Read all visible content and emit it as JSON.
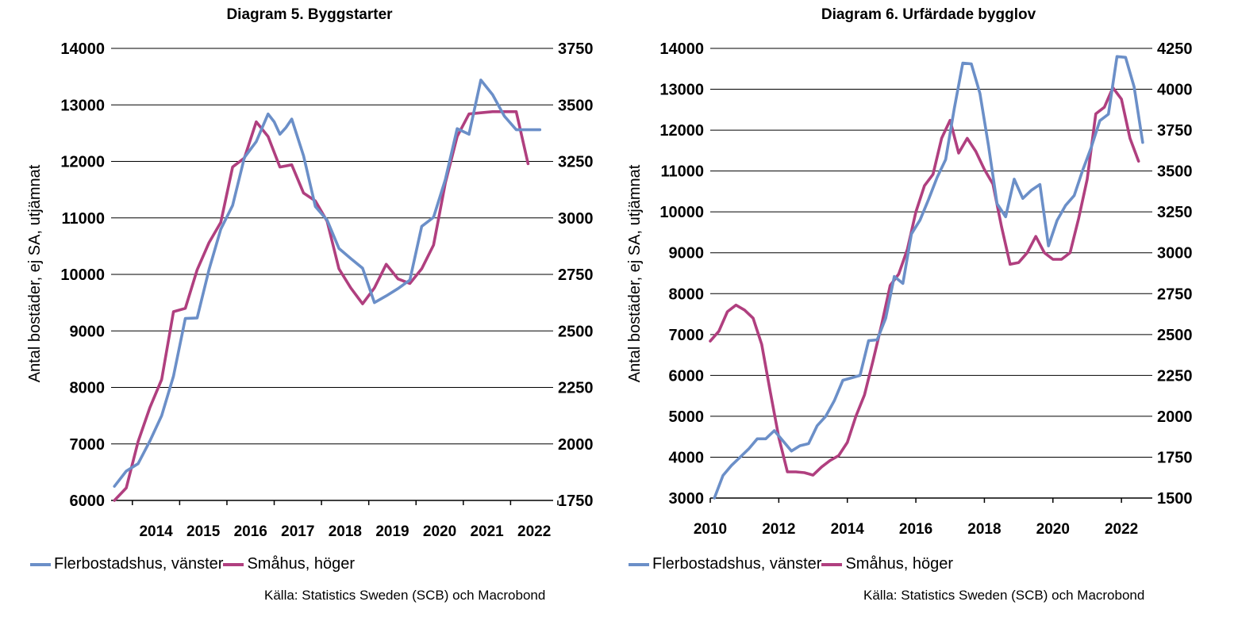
{
  "colors": {
    "flerbostadshus": "#6b8fc8",
    "smahus": "#b03f7f",
    "grid": "#000000"
  },
  "chart_data": [
    {
      "type": "line",
      "title": "Diagram 5. Byggstarter",
      "ylabel": "Antal bostäder, ej SA, utjämnat",
      "x_axis": {
        "min": 2013.55,
        "max": 2022.9,
        "ticks": [
          2014,
          2015,
          2016,
          2017,
          2018,
          2019,
          2020,
          2021,
          2022
        ],
        "labels_between_ticks": true
      },
      "y_left": {
        "min": 6000,
        "max": 14000,
        "ticks": [
          6000,
          7000,
          8000,
          9000,
          10000,
          11000,
          12000,
          13000,
          14000
        ]
      },
      "y_right": {
        "min": 1750,
        "max": 3750,
        "ticks": [
          1750,
          2000,
          2250,
          2500,
          2750,
          3000,
          3250,
          3500,
          3750
        ]
      },
      "grid": "horizontal",
      "series": [
        {
          "name": "Flerbostadshus, vänster",
          "axis": "left",
          "color_key": "flerbostadshus",
          "x": [
            2013.62,
            2013.87,
            2014.12,
            2014.37,
            2014.62,
            2014.87,
            2015.12,
            2015.37,
            2015.62,
            2015.87,
            2016.12,
            2016.37,
            2016.62,
            2016.87,
            2017.0,
            2017.12,
            2017.25,
            2017.37,
            2017.62,
            2017.87,
            2018.12,
            2018.37,
            2018.62,
            2018.87,
            2019.12,
            2019.37,
            2019.62,
            2019.87,
            2020.12,
            2020.37,
            2020.62,
            2020.87,
            2021.12,
            2021.37,
            2021.62,
            2021.87,
            2022.12,
            2022.37,
            2022.62
          ],
          "values": [
            6250,
            6520,
            6650,
            7050,
            7500,
            8200,
            9220,
            9230,
            10080,
            10800,
            11220,
            12070,
            12350,
            12840,
            12700,
            12480,
            12600,
            12750,
            12100,
            11200,
            10960,
            10460,
            10280,
            10110,
            9500,
            9620,
            9750,
            9900,
            10850,
            11010,
            11680,
            12580,
            12480,
            13440,
            13180,
            12800,
            12560,
            12560,
            12560
          ]
        },
        {
          "name": "Småhus, höger",
          "axis": "right",
          "color_key": "smahus",
          "x": [
            2013.62,
            2013.87,
            2014.12,
            2014.37,
            2014.62,
            2014.87,
            2015.12,
            2015.37,
            2015.62,
            2015.87,
            2016.12,
            2016.37,
            2016.62,
            2016.87,
            2017.12,
            2017.37,
            2017.62,
            2017.87,
            2018.12,
            2018.37,
            2018.62,
            2018.87,
            2019.12,
            2019.37,
            2019.62,
            2019.87,
            2020.12,
            2020.37,
            2020.62,
            2020.87,
            2021.12,
            2021.37,
            2021.62,
            2021.87,
            2022.12,
            2022.37
          ],
          "values": [
            1750,
            1805,
            2010,
            2160,
            2285,
            2585,
            2600,
            2770,
            2890,
            2980,
            3225,
            3265,
            3425,
            3360,
            3225,
            3235,
            3110,
            3075,
            2985,
            2775,
            2690,
            2620,
            2690,
            2795,
            2730,
            2710,
            2775,
            2880,
            3155,
            3360,
            3460,
            3465,
            3470,
            3470,
            3470,
            3240
          ]
        }
      ],
      "legend_placement": "bottom-left",
      "source": "Källa: Statistics Sweden (SCB) och Macrobond"
    },
    {
      "type": "line",
      "title": "Diagram 6. Urfärdade bygglov",
      "ylabel": "Antal bostäder, ej SA, utjämnat",
      "x_axis": {
        "min": 2010,
        "max": 2022.9,
        "ticks": [
          2010,
          2012,
          2014,
          2016,
          2018,
          2020,
          2022
        ],
        "labels_between_ticks": false
      },
      "y_left": {
        "min": 3000,
        "max": 14000,
        "ticks": [
          3000,
          4000,
          5000,
          6000,
          7000,
          8000,
          9000,
          10000,
          11000,
          12000,
          13000,
          14000
        ]
      },
      "y_right": {
        "min": 1500,
        "max": 4250,
        "ticks": [
          1500,
          1750,
          2000,
          2250,
          2500,
          2750,
          3000,
          3250,
          3500,
          3750,
          4000,
          4250
        ]
      },
      "grid": "horizontal",
      "series": [
        {
          "name": "Flerbostadshus, vänster",
          "axis": "left",
          "color_key": "flerbostadshus",
          "x": [
            2010.12,
            2010.37,
            2010.62,
            2010.87,
            2011.12,
            2011.37,
            2011.62,
            2011.87,
            2012.12,
            2012.37,
            2012.62,
            2012.87,
            2013.12,
            2013.37,
            2013.62,
            2013.87,
            2014.12,
            2014.37,
            2014.62,
            2014.87,
            2015.12,
            2015.37,
            2015.62,
            2015.87,
            2016.12,
            2016.37,
            2016.62,
            2016.87,
            2017.12,
            2017.37,
            2017.62,
            2017.87,
            2018.12,
            2018.37,
            2018.62,
            2018.87,
            2019.12,
            2019.37,
            2019.62,
            2019.87,
            2020.12,
            2020.37,
            2020.62,
            2020.87,
            2021.12,
            2021.37,
            2021.62,
            2021.87,
            2022.12,
            2022.37,
            2022.62
          ],
          "values": [
            3000,
            3550,
            3800,
            4000,
            4200,
            4450,
            4450,
            4650,
            4400,
            4150,
            4280,
            4330,
            4770,
            5000,
            5380,
            5880,
            5940,
            6000,
            6850,
            6870,
            7400,
            8420,
            8250,
            9460,
            9800,
            10300,
            10840,
            11280,
            12520,
            13640,
            13620,
            12900,
            11620,
            10200,
            9880,
            10800,
            10330,
            10530,
            10670,
            9170,
            9790,
            10160,
            10400,
            11020,
            11580,
            12230,
            12390,
            13800,
            13780,
            13060,
            11700
          ]
        },
        {
          "name": "Småhus, höger",
          "axis": "right",
          "color_key": "smahus",
          "x": [
            2010.0,
            2010.25,
            2010.5,
            2010.75,
            2011.0,
            2011.25,
            2011.5,
            2011.75,
            2012.0,
            2012.25,
            2012.5,
            2012.75,
            2013.0,
            2013.25,
            2013.5,
            2013.75,
            2014.0,
            2014.25,
            2014.5,
            2014.75,
            2015.0,
            2015.25,
            2015.5,
            2015.75,
            2016.0,
            2016.25,
            2016.5,
            2016.75,
            2017.0,
            2017.25,
            2017.5,
            2017.75,
            2018.0,
            2018.25,
            2018.5,
            2018.75,
            2019.0,
            2019.25,
            2019.5,
            2019.75,
            2020.0,
            2020.25,
            2020.5,
            2020.75,
            2021.0,
            2021.25,
            2021.5,
            2021.75,
            2022.0,
            2022.25,
            2022.5
          ],
          "values": [
            2460,
            2520,
            2640,
            2680,
            2650,
            2600,
            2440,
            2150,
            1870,
            1660,
            1660,
            1655,
            1640,
            1690,
            1730,
            1760,
            1840,
            2000,
            2130,
            2340,
            2560,
            2800,
            2870,
            3020,
            3250,
            3410,
            3480,
            3700,
            3810,
            3610,
            3700,
            3620,
            3510,
            3420,
            3160,
            2930,
            2940,
            3000,
            3100,
            3000,
            2960,
            2960,
            3000,
            3210,
            3450,
            3850,
            3890,
            4010,
            3940,
            3700,
            3560
          ]
        }
      ],
      "legend_placement": "bottom-left",
      "source": "Källa: Statistics Sweden (SCB) och Macrobond"
    }
  ]
}
